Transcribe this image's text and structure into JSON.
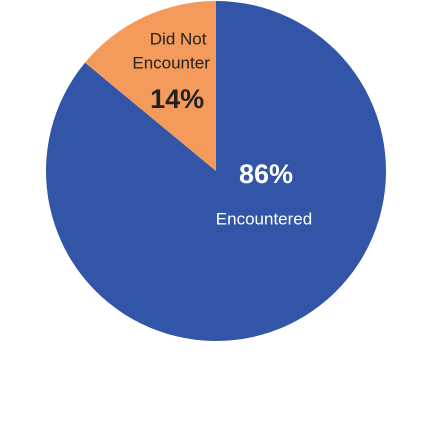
{
  "chart_data": {
    "type": "pie",
    "categories": [
      "Encountered",
      "Did Not Encounter"
    ],
    "values": [
      86,
      14
    ],
    "value_labels": [
      "86%",
      "14%"
    ],
    "colors": [
      "#3355a8",
      "#f49a5a"
    ],
    "label_colors": [
      "#ffffff",
      "#222222"
    ]
  }
}
